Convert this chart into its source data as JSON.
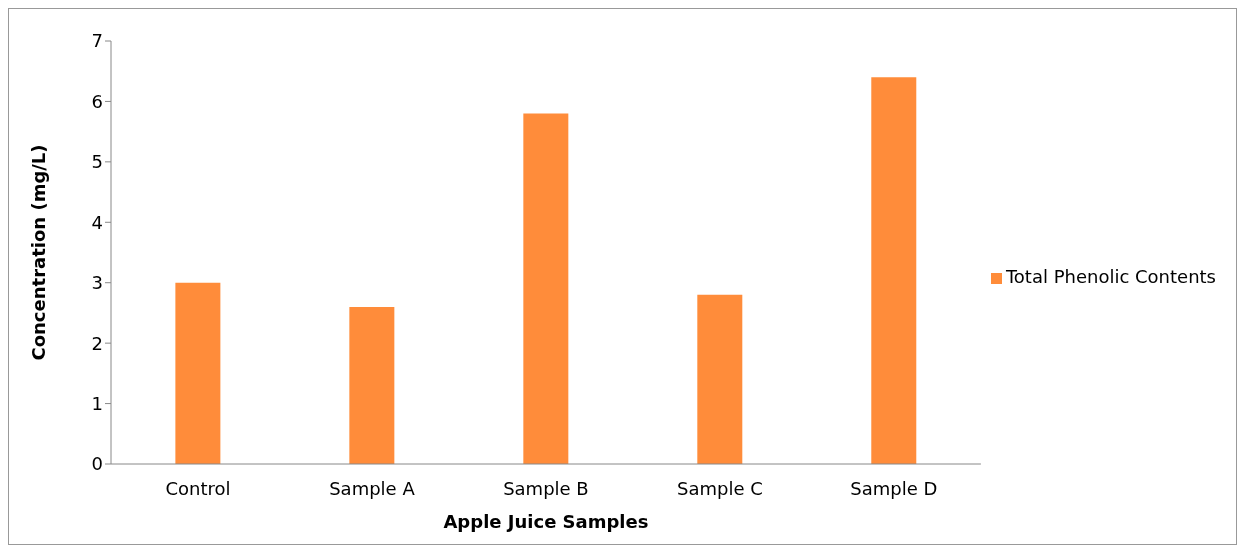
{
  "chart_data": {
    "type": "bar",
    "xlabel": "Apple Juice Samples",
    "ylabel": "Concentration (mg/L)",
    "categories": [
      "Control",
      "Sample A",
      "Sample B",
      "Sample C",
      "Sample D"
    ],
    "series": [
      {
        "name": "Total Phenolic Contents",
        "color": "#ff8c3a",
        "values": [
          3.0,
          2.6,
          5.8,
          2.8,
          6.4
        ]
      }
    ],
    "ylim": [
      0,
      7
    ],
    "yticks": [
      0,
      1,
      2,
      3,
      4,
      5,
      6,
      7
    ],
    "grid": false,
    "legend": "right"
  }
}
